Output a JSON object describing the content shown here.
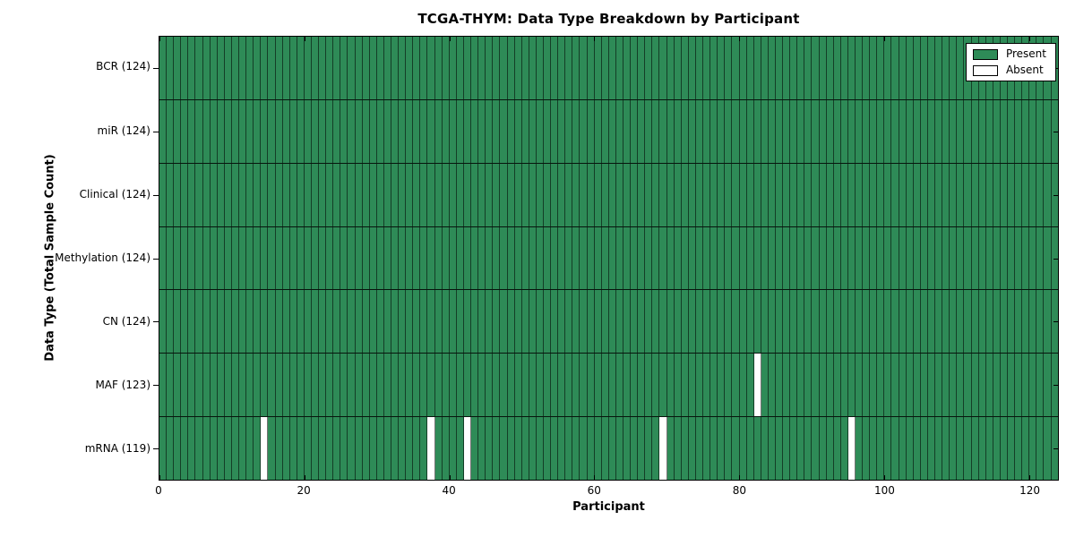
{
  "chart_data": {
    "type": "heatmap",
    "title": "TCGA-THYM: Data Type Breakdown by Participant",
    "xlabel": "Participant",
    "ylabel": "Data Type (Total Sample Count)",
    "xlim": [
      0,
      124
    ],
    "x_ticks": [
      0,
      20,
      40,
      60,
      80,
      100,
      120
    ],
    "n_participants": 124,
    "grid": "cell-borders-on",
    "legend": {
      "position": "upper right",
      "entries": [
        {
          "label": "Present",
          "color": "#2e8b57"
        },
        {
          "label": "Absent",
          "color": "#ffffff"
        }
      ]
    },
    "colors": {
      "present": "#2e8b57",
      "absent": "#ffffff",
      "cell_border": "rgba(0,0,0,0.55)",
      "row_border": "#000000"
    },
    "rows": [
      {
        "label": "BCR (124)",
        "data_type": "BCR",
        "total_samples": 124,
        "absent_participants": []
      },
      {
        "label": "miR (124)",
        "data_type": "miR",
        "total_samples": 124,
        "absent_participants": []
      },
      {
        "label": "Clinical (124)",
        "data_type": "Clinical",
        "total_samples": 124,
        "absent_participants": []
      },
      {
        "label": "Methylation (124)",
        "data_type": "Methylation",
        "total_samples": 124,
        "absent_participants": []
      },
      {
        "label": "CN (124)",
        "data_type": "CN",
        "total_samples": 124,
        "absent_participants": []
      },
      {
        "label": "MAF (123)",
        "data_type": "MAF",
        "total_samples": 123,
        "absent_participants": [
          82
        ]
      },
      {
        "label": "mRNA (119)",
        "data_type": "mRNA",
        "total_samples": 119,
        "absent_participants": [
          14,
          37,
          42,
          69,
          95
        ]
      }
    ]
  }
}
